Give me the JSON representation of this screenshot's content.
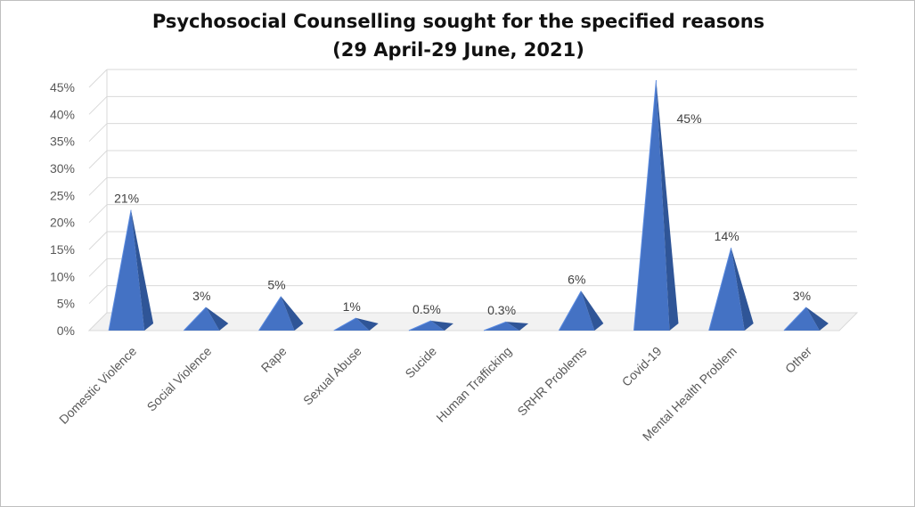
{
  "chart_data": {
    "type": "bar",
    "style": "3d-pyramid",
    "title": "Psychosocial Counselling sought for the specified reasons",
    "subtitle": "(29 April-29 June, 2021)",
    "categories": [
      "Domestic Violence",
      "Social Violence",
      "Rape",
      "Sexual Abuse",
      "Sucide",
      "Human Trafficking",
      "SRHR Problems",
      "Covid-19",
      "Mental Health Problem",
      "Other"
    ],
    "values": [
      21,
      3,
      5,
      1,
      0.5,
      0.3,
      6,
      45,
      14,
      3
    ],
    "data_labels": [
      "21%",
      "3%",
      "5%",
      "1%",
      "0.5%",
      "0.3%",
      "6%",
      "45%",
      "14%",
      "3%"
    ],
    "y_ticks": [
      "0%",
      "5%",
      "10%",
      "15%",
      "20%",
      "25%",
      "30%",
      "35%",
      "40%",
      "45%"
    ],
    "ylim": [
      0,
      45
    ],
    "grid": true,
    "legend": "none",
    "bar_color": "#4472c4"
  }
}
